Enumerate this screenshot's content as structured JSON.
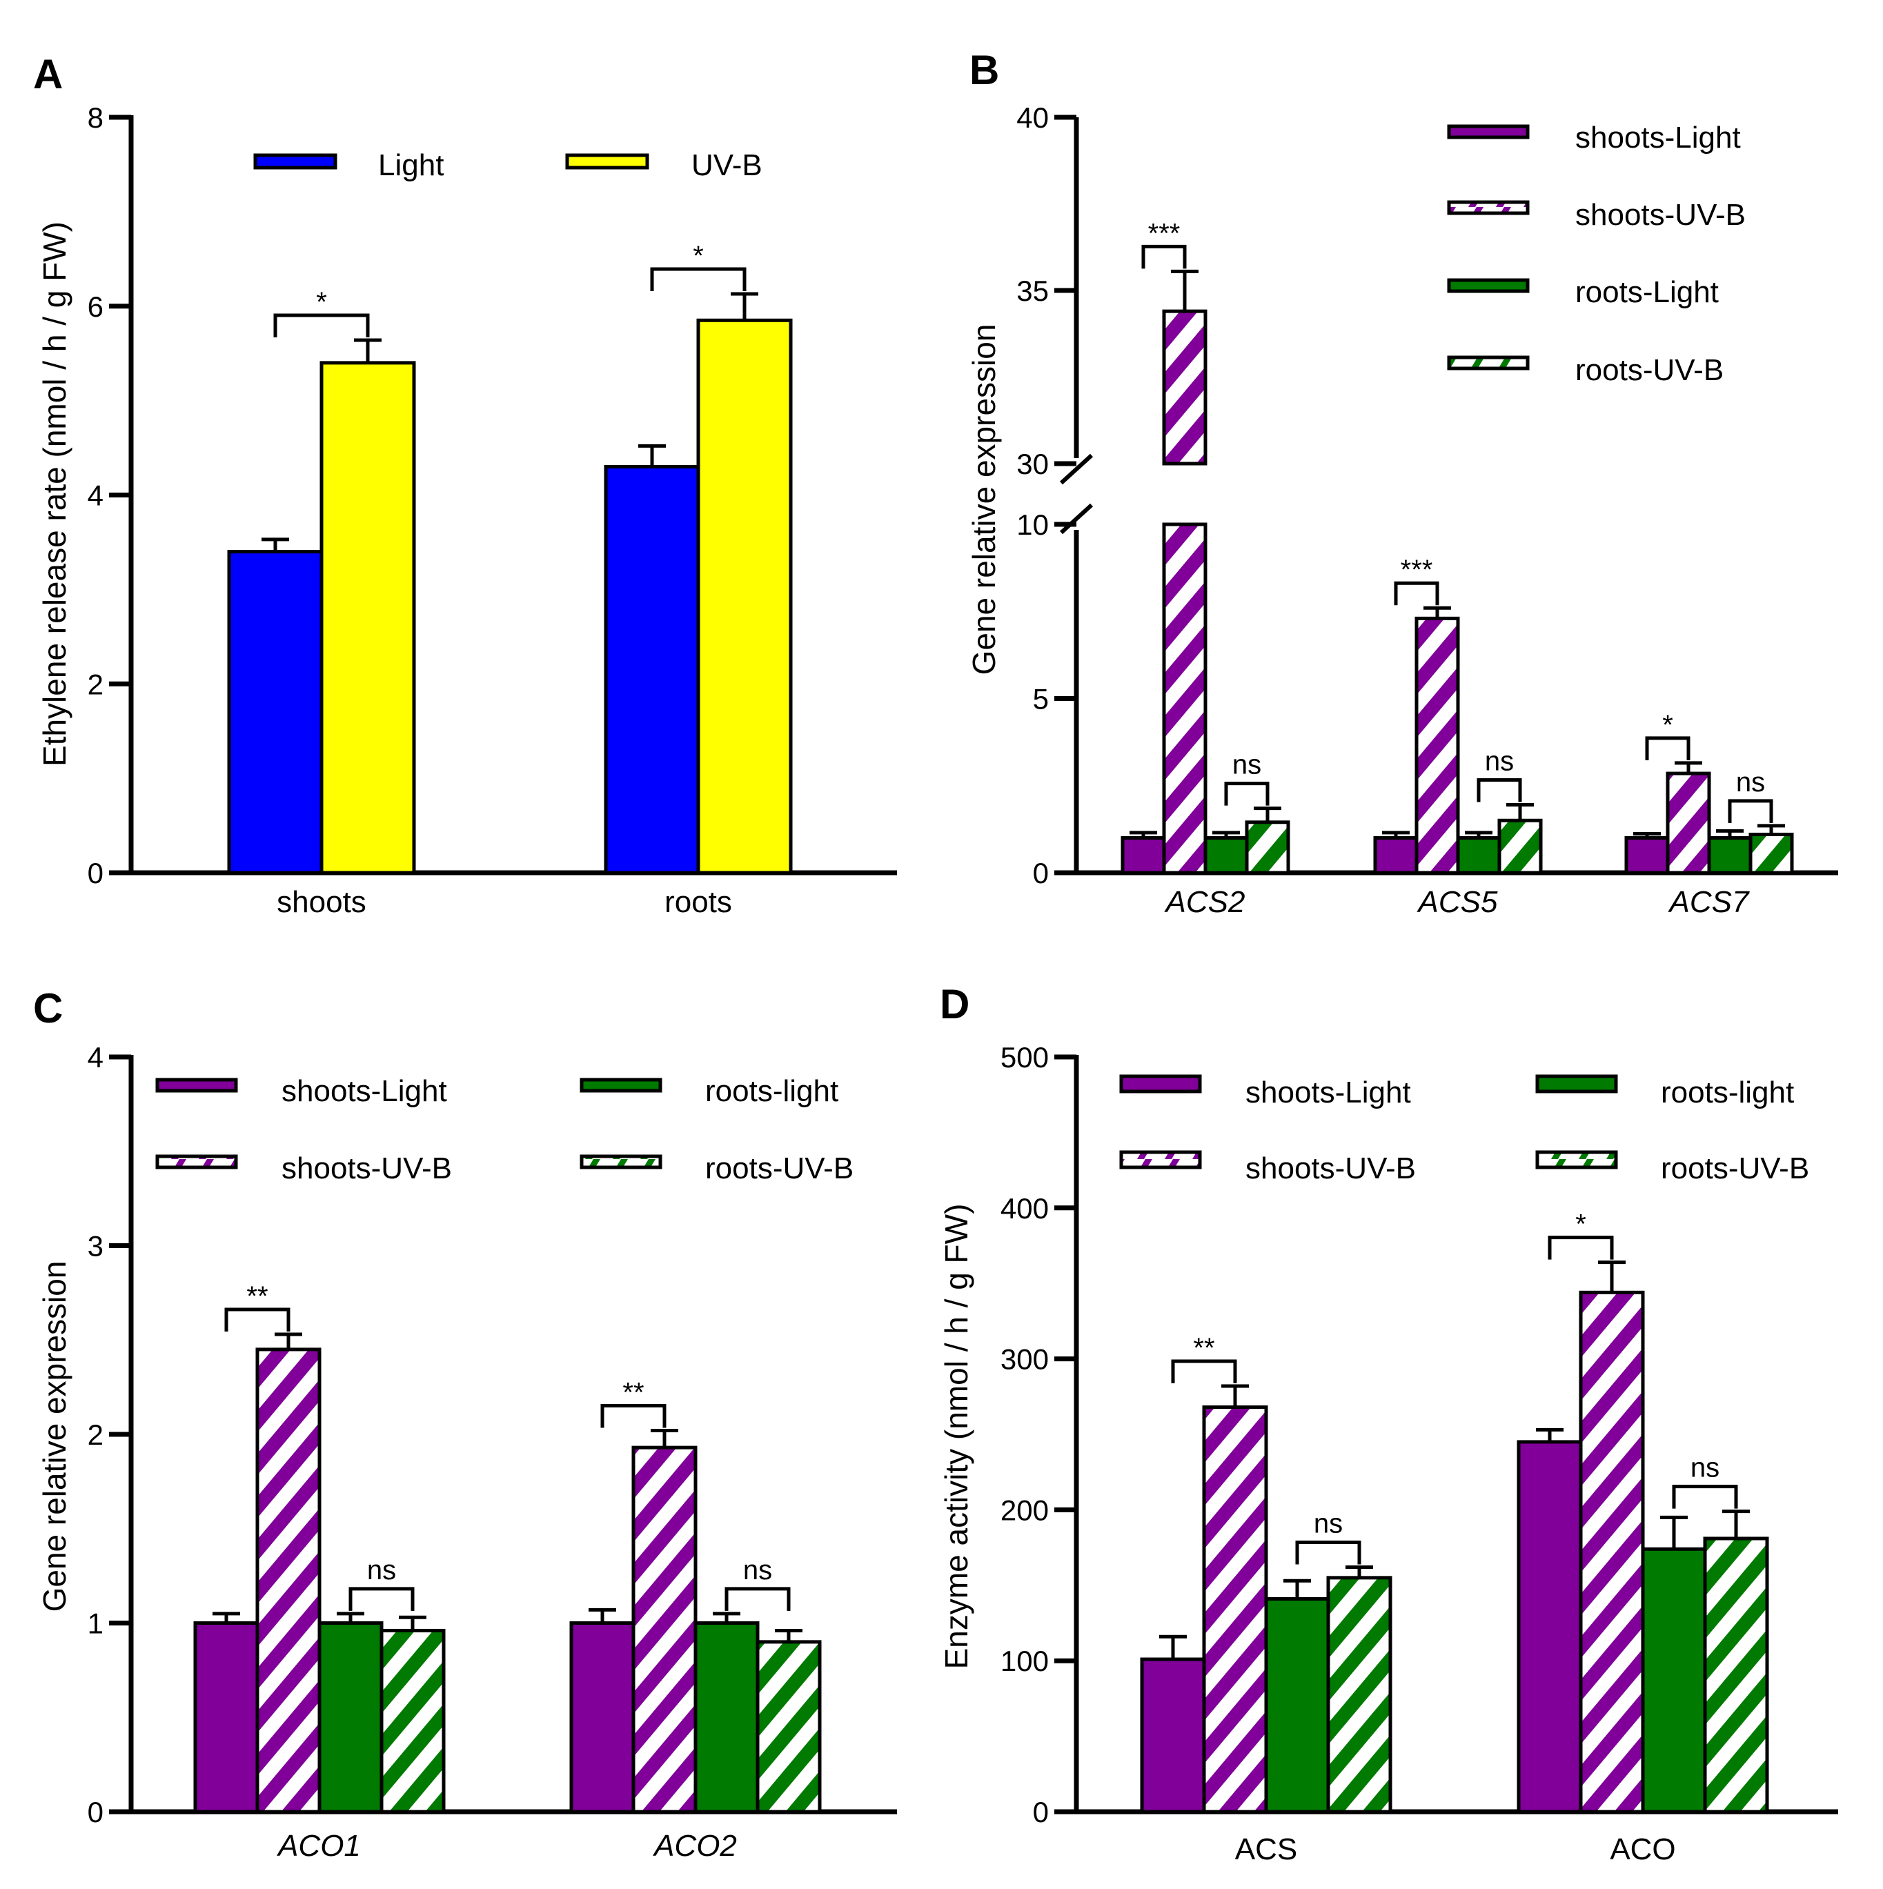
{
  "colors": {
    "blue": "#0000ff",
    "yellow": "#ffff00",
    "purple": "#800099",
    "green": "#007a00",
    "white": "#ffffff",
    "black": "#000000"
  },
  "chart_data": [
    {
      "panel": "A",
      "type": "bar",
      "ylabel": "Ethylene release rate (nmol / h / g FW)",
      "ylim": [
        0,
        8
      ],
      "yticks": [
        0,
        2,
        4,
        6,
        8
      ],
      "categories": [
        "shoots",
        "roots"
      ],
      "category_style": "normal",
      "legend_position": "top",
      "series": [
        {
          "name": "Light",
          "color": "blue",
          "hatch": false,
          "values": [
            3.4,
            4.3
          ],
          "errors": [
            0.13,
            0.22
          ]
        },
        {
          "name": "UV-B",
          "color": "yellow",
          "hatch": false,
          "values": [
            5.4,
            5.85
          ],
          "errors": [
            0.24,
            0.28
          ]
        }
      ],
      "significance": [
        {
          "category": 0,
          "from": 0,
          "to": 1,
          "label": "*"
        },
        {
          "category": 1,
          "from": 0,
          "to": 1,
          "label": "*"
        }
      ]
    },
    {
      "panel": "B",
      "type": "bar",
      "ylabel": "Gene relative expression",
      "ylim": [
        0,
        40
      ],
      "yticks": [
        0,
        5,
        10,
        30,
        35,
        40
      ],
      "axis_break": [
        10,
        30
      ],
      "categories": [
        "ACS2",
        "ACS5",
        "ACS7"
      ],
      "category_style": "italic",
      "legend_position": "top-right",
      "series": [
        {
          "name": "shoots-Light",
          "color": "purple",
          "hatch": false,
          "values": [
            1.0,
            1.0,
            1.0
          ],
          "errors": [
            0.15,
            0.15,
            0.12
          ]
        },
        {
          "name": "shoots-UV-B",
          "color": "purple",
          "hatch": true,
          "values": [
            34.4,
            7.3,
            2.85
          ],
          "errors": [
            1.15,
            0.3,
            0.3
          ]
        },
        {
          "name": "roots-Light",
          "color": "green",
          "hatch": false,
          "values": [
            1.0,
            1.0,
            1.0
          ],
          "errors": [
            0.15,
            0.15,
            0.2
          ]
        },
        {
          "name": "roots-UV-B",
          "color": "green",
          "hatch": true,
          "values": [
            1.45,
            1.5,
            1.1
          ],
          "errors": [
            0.4,
            0.45,
            0.25
          ]
        }
      ],
      "significance": [
        {
          "category": 0,
          "from": 0,
          "to": 1,
          "label": "***"
        },
        {
          "category": 0,
          "from": 2,
          "to": 3,
          "label": "ns"
        },
        {
          "category": 1,
          "from": 0,
          "to": 1,
          "label": "***"
        },
        {
          "category": 1,
          "from": 2,
          "to": 3,
          "label": "ns"
        },
        {
          "category": 2,
          "from": 0,
          "to": 1,
          "label": "*"
        },
        {
          "category": 2,
          "from": 2,
          "to": 3,
          "label": "ns"
        }
      ]
    },
    {
      "panel": "C",
      "type": "bar",
      "ylabel": "Gene relative expression",
      "ylim": [
        0,
        4
      ],
      "yticks": [
        0,
        1,
        2,
        3,
        4
      ],
      "categories": [
        "ACO1",
        "ACO2"
      ],
      "category_style": "italic",
      "legend_position": "top",
      "series": [
        {
          "name": "shoots-Light",
          "color": "purple",
          "hatch": false,
          "values": [
            1.0,
            1.0
          ],
          "errors": [
            0.05,
            0.07
          ]
        },
        {
          "name": "shoots-UV-B",
          "color": "purple",
          "hatch": true,
          "values": [
            2.45,
            1.93
          ],
          "errors": [
            0.08,
            0.09
          ]
        },
        {
          "name": "roots-light",
          "color": "green",
          "hatch": false,
          "values": [
            1.0,
            1.0
          ],
          "errors": [
            0.05,
            0.05
          ]
        },
        {
          "name": "roots-UV-B",
          "color": "green",
          "hatch": true,
          "values": [
            0.96,
            0.9
          ],
          "errors": [
            0.07,
            0.06
          ]
        }
      ],
      "significance": [
        {
          "category": 0,
          "from": 0,
          "to": 1,
          "label": "**"
        },
        {
          "category": 0,
          "from": 2,
          "to": 3,
          "label": "ns"
        },
        {
          "category": 1,
          "from": 0,
          "to": 1,
          "label": "**"
        },
        {
          "category": 1,
          "from": 2,
          "to": 3,
          "label": "ns"
        }
      ]
    },
    {
      "panel": "D",
      "type": "bar",
      "ylabel": "Enzyme activity (nmol / h / g FW)",
      "ylim": [
        0,
        500
      ],
      "yticks": [
        0,
        100,
        200,
        300,
        400,
        500
      ],
      "categories": [
        "ACS",
        "ACO"
      ],
      "category_style": "normal",
      "legend_position": "top",
      "series": [
        {
          "name": "shoots-Light",
          "color": "purple",
          "hatch": false,
          "values": [
            101,
            245
          ],
          "errors": [
            15,
            8
          ]
        },
        {
          "name": "shoots-UV-B",
          "color": "purple",
          "hatch": true,
          "values": [
            268,
            344
          ],
          "errors": [
            14,
            20
          ]
        },
        {
          "name": "roots-light",
          "color": "green",
          "hatch": false,
          "values": [
            141,
            174
          ],
          "errors": [
            12,
            21
          ]
        },
        {
          "name": "roots-UV-B",
          "color": "green",
          "hatch": true,
          "values": [
            155,
            181
          ],
          "errors": [
            7,
            18
          ]
        }
      ],
      "significance": [
        {
          "category": 0,
          "from": 0,
          "to": 1,
          "label": "**"
        },
        {
          "category": 0,
          "from": 2,
          "to": 3,
          "label": "ns"
        },
        {
          "category": 1,
          "from": 0,
          "to": 1,
          "label": "*"
        },
        {
          "category": 1,
          "from": 2,
          "to": 3,
          "label": "ns"
        }
      ]
    }
  ]
}
